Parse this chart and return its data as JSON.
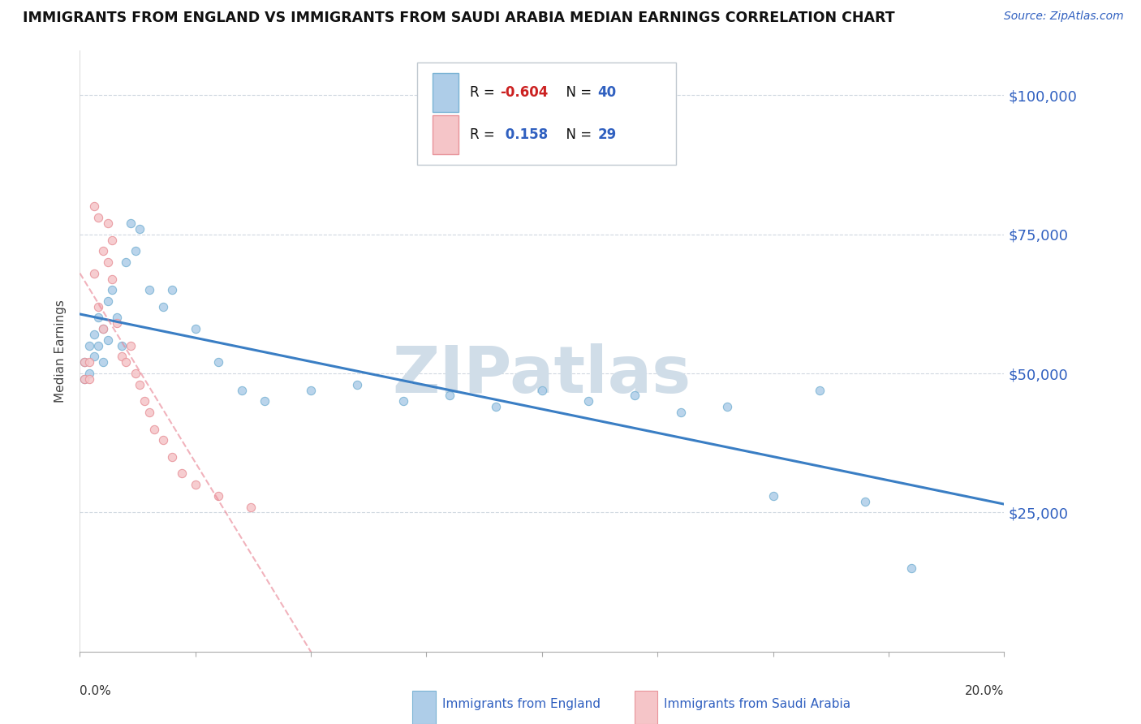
{
  "title": "IMMIGRANTS FROM ENGLAND VS IMMIGRANTS FROM SAUDI ARABIA MEDIAN EARNINGS CORRELATION CHART",
  "source": "Source: ZipAtlas.com",
  "ylabel": "Median Earnings",
  "x_min": 0.0,
  "x_max": 0.2,
  "y_min": 0,
  "y_max": 108000,
  "england_dot_color": "#7ab3d4",
  "england_dot_fill": "#aecde8",
  "saudi_dot_color": "#e8939a",
  "saudi_dot_fill": "#f5c5c8",
  "england_line_color": "#3a7ec4",
  "saudi_line_color": "#e88090",
  "england_R": "-0.604",
  "england_N": "40",
  "saudi_R": "0.158",
  "saudi_N": "29",
  "legend_text_color": "#1a1a8c",
  "legend_R_neg_color": "#cc2222",
  "watermark_color": "#d0dde8",
  "grid_color": "#d0d8e0",
  "y_ticks": [
    25000,
    50000,
    75000,
    100000
  ],
  "y_tick_labels": [
    "$25,000",
    "$50,000",
    "$75,000",
    "$100,000"
  ],
  "england_x": [
    0.001,
    0.001,
    0.002,
    0.002,
    0.003,
    0.003,
    0.004,
    0.004,
    0.005,
    0.005,
    0.006,
    0.006,
    0.007,
    0.008,
    0.009,
    0.01,
    0.011,
    0.012,
    0.013,
    0.015,
    0.018,
    0.02,
    0.025,
    0.03,
    0.035,
    0.04,
    0.05,
    0.06,
    0.07,
    0.08,
    0.09,
    0.1,
    0.11,
    0.12,
    0.13,
    0.14,
    0.15,
    0.16,
    0.17,
    0.18
  ],
  "england_y": [
    52000,
    49000,
    55000,
    50000,
    57000,
    53000,
    60000,
    55000,
    58000,
    52000,
    63000,
    56000,
    65000,
    60000,
    55000,
    70000,
    77000,
    72000,
    76000,
    65000,
    62000,
    65000,
    58000,
    52000,
    47000,
    45000,
    47000,
    48000,
    45000,
    46000,
    44000,
    47000,
    45000,
    46000,
    43000,
    44000,
    28000,
    47000,
    27000,
    15000
  ],
  "saudi_x": [
    0.001,
    0.001,
    0.002,
    0.002,
    0.003,
    0.003,
    0.004,
    0.004,
    0.005,
    0.005,
    0.006,
    0.006,
    0.007,
    0.007,
    0.008,
    0.009,
    0.01,
    0.011,
    0.012,
    0.013,
    0.014,
    0.015,
    0.016,
    0.018,
    0.02,
    0.022,
    0.025,
    0.03,
    0.037
  ],
  "saudi_y": [
    52000,
    49000,
    52000,
    49000,
    80000,
    68000,
    78000,
    62000,
    72000,
    58000,
    77000,
    70000,
    74000,
    67000,
    59000,
    53000,
    52000,
    55000,
    50000,
    48000,
    45000,
    43000,
    40000,
    38000,
    35000,
    32000,
    30000,
    28000,
    26000
  ]
}
